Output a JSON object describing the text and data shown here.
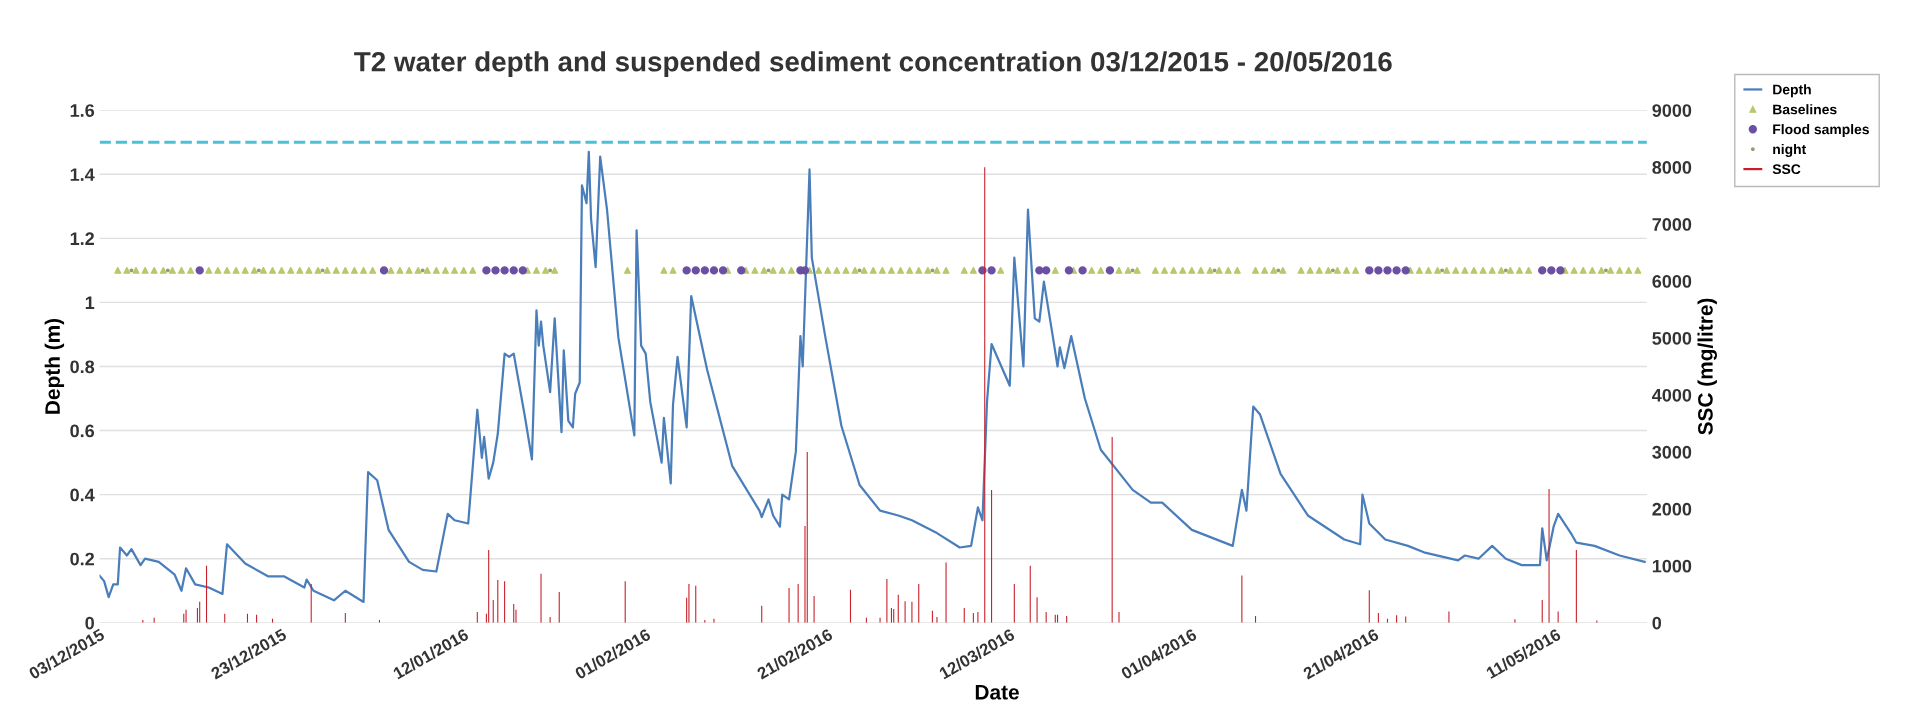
{
  "chart_data": {
    "type": "line",
    "title": "T2 water depth and suspended sediment concentration 03/12/2015 - 20/05/2016",
    "xlabel": "Date",
    "ylabel": "Depth (m)",
    "y2label": "SSC (mg/litre)",
    "xlim": [
      "2015-12-03",
      "2016-05-21"
    ],
    "xticks": [
      {
        "value": "2015-12-03",
        "label": "03/12/2015"
      },
      {
        "value": "2015-12-23",
        "label": "23/12/2015"
      },
      {
        "value": "2016-01-12",
        "label": "12/01/2016"
      },
      {
        "value": "2016-02-01",
        "label": "01/02/2016"
      },
      {
        "value": "2016-02-21",
        "label": "21/02/2016"
      },
      {
        "value": "2016-03-12",
        "label": "12/03/2016"
      },
      {
        "value": "2016-04-01",
        "label": "01/04/2016"
      },
      {
        "value": "2016-04-21",
        "label": "21/04/2016"
      },
      {
        "value": "2016-05-11",
        "label": "11/05/2016"
      }
    ],
    "ylim": [
      0,
      1.6
    ],
    "yticks": [
      0,
      0.2,
      0.4,
      0.6,
      0.8,
      1,
      1.2,
      1.4,
      1.6
    ],
    "y2lim": [
      0,
      9000
    ],
    "y2ticks": [
      0,
      1000,
      2000,
      3000,
      4000,
      5000,
      6000,
      7000,
      8000,
      9000
    ],
    "grid": "y",
    "legend": "top right",
    "ref_lines": [
      {
        "axis": "y",
        "value": 1.5,
        "label": null,
        "color": "#4bc0d9",
        "line_style": "dashed"
      }
    ],
    "series": [
      {
        "name": "Depth",
        "color": "#4a7ebb",
        "marker": "none",
        "line_style": "solid",
        "x": [
          "2015-12-03T00:00",
          "2015-12-03T12:00",
          "2015-12-04T00:00",
          "2015-12-04T12:00",
          "2015-12-05T00:00",
          "2015-12-05T06:00",
          "2015-12-06T00:00",
          "2015-12-06T12:00",
          "2015-12-07T12:00",
          "2015-12-08T00:00",
          "2015-12-09T12:00",
          "2015-12-11T06:00",
          "2015-12-12T00:00",
          "2015-12-12T12:00",
          "2015-12-13T12:00",
          "2015-12-15T00:00",
          "2015-12-16T12:00",
          "2015-12-17T00:00",
          "2015-12-19T00:00",
          "2015-12-21T12:00",
          "2015-12-23T06:00",
          "2015-12-25T12:00",
          "2015-12-25T18:00",
          "2015-12-26T12:00",
          "2015-12-28T18:00",
          "2015-12-30T00:00",
          "2016-01-01T00:00",
          "2016-01-01T12:00",
          "2016-01-02T12:00",
          "2016-01-03T18:00",
          "2016-01-06T00:00",
          "2016-01-07T12:00",
          "2016-01-09T00:00",
          "2016-01-10T06:00",
          "2016-01-11T00:00",
          "2016-01-12T12:00",
          "2016-01-13T12:00",
          "2016-01-14T00:00",
          "2016-01-14T06:00",
          "2016-01-14T18:00",
          "2016-01-15T06:00",
          "2016-01-15T18:00",
          "2016-01-16T12:00",
          "2016-01-17T00:00",
          "2016-01-17T12:00",
          "2016-01-18T18:00",
          "2016-01-19T12:00",
          "2016-01-20T00:00",
          "2016-01-20T06:00",
          "2016-01-20T12:00",
          "2016-01-20T18:00",
          "2016-01-21T12:00",
          "2016-01-22T00:00",
          "2016-01-22T18:00",
          "2016-01-23T00:00",
          "2016-01-23T12:00",
          "2016-01-24T00:00",
          "2016-01-24T06:00",
          "2016-01-24T18:00",
          "2016-01-25T00:00",
          "2016-01-25T12:00",
          "2016-01-25T18:00",
          "2016-01-26T00:00",
          "2016-01-26T12:00",
          "2016-01-27T00:00",
          "2016-01-27T18:00",
          "2016-01-29T00:00",
          "2016-01-30T18:00",
          "2016-01-31T00:00",
          "2016-01-31T12:00",
          "2016-02-01T00:00",
          "2016-02-01T12:00",
          "2016-02-02T18:00",
          "2016-02-03T00:00",
          "2016-02-03T18:00",
          "2016-02-04T00:00",
          "2016-02-04T12:00",
          "2016-02-05T12:00",
          "2016-02-06T00:00",
          "2016-02-07T18:00",
          "2016-02-10T12:00",
          "2016-02-13T12:00",
          "2016-02-13T18:00",
          "2016-02-14T12:00",
          "2016-02-15T00:00",
          "2016-02-15T18:00",
          "2016-02-16T00:00",
          "2016-02-16T18:00",
          "2016-02-17T12:00",
          "2016-02-18T00:00",
          "2016-02-18T06:00",
          "2016-02-19T00:00",
          "2016-02-19T06:00",
          "2016-02-20T18:00",
          "2016-02-22T12:00",
          "2016-02-24T12:00",
          "2016-02-26T18:00",
          "2016-02-28T18:00",
          "2016-03-01T06:00",
          "2016-03-04T00:00",
          "2016-03-06T12:00",
          "2016-03-07T18:00",
          "2016-03-08T12:00",
          "2016-03-09T00:00",
          "2016-03-09T12:00",
          "2016-03-10T00:00",
          "2016-03-12T00:00",
          "2016-03-12T12:00",
          "2016-03-13T12:00",
          "2016-03-14T00:00",
          "2016-03-14T18:00",
          "2016-03-15T06:00",
          "2016-03-15T18:00",
          "2016-03-16T18:00",
          "2016-03-17T06:00",
          "2016-03-17T12:00",
          "2016-03-18T00:00",
          "2016-03-18T18:00",
          "2016-03-20T06:00",
          "2016-03-22T00:00",
          "2016-03-25T12:00",
          "2016-03-27T12:00",
          "2016-03-28T18:00",
          "2016-04-01T00:00",
          "2016-04-05T12:00",
          "2016-04-06T12:00",
          "2016-04-07T00:00",
          "2016-04-07T18:00",
          "2016-04-08T12:00",
          "2016-04-10T18:00",
          "2016-04-13T18:00",
          "2016-04-17T18:00",
          "2016-04-19T12:00",
          "2016-04-19T18:00",
          "2016-04-20T12:00",
          "2016-04-22T06:00",
          "2016-04-24T18:00",
          "2016-04-26T12:00",
          "2016-04-30T06:00",
          "2016-05-01T00:00",
          "2016-05-02T12:00",
          "2016-05-04T00:00",
          "2016-05-05T12:00",
          "2016-05-07T06:00",
          "2016-05-09T06:00",
          "2016-05-09T12:00",
          "2016-05-10T00:00",
          "2016-05-10T18:00",
          "2016-05-11T06:00",
          "2016-05-12T18:00",
          "2016-05-13T06:00",
          "2016-05-15T06:00",
          "2016-05-18T00:00",
          "2016-05-20T18:00"
        ],
        "values": [
          0.147,
          0.13,
          0.08,
          0.12,
          0.12,
          0.235,
          0.21,
          0.23,
          0.18,
          0.2,
          0.19,
          0.15,
          0.1,
          0.17,
          0.12,
          0.11,
          0.09,
          0.245,
          0.185,
          0.145,
          0.145,
          0.11,
          0.135,
          0.1,
          0.07,
          0.1,
          0.065,
          0.47,
          0.445,
          0.29,
          0.19,
          0.165,
          0.16,
          0.34,
          0.32,
          0.31,
          0.665,
          0.515,
          0.58,
          0.45,
          0.5,
          0.59,
          0.84,
          0.83,
          0.84,
          0.64,
          0.51,
          0.975,
          0.865,
          0.94,
          0.865,
          0.72,
          0.95,
          0.595,
          0.85,
          0.63,
          0.61,
          0.715,
          0.75,
          1.365,
          1.31,
          1.47,
          1.26,
          1.11,
          1.455,
          1.29,
          0.89,
          0.585,
          1.225,
          0.865,
          0.84,
          0.69,
          0.5,
          0.64,
          0.435,
          0.68,
          0.83,
          0.61,
          1.02,
          0.79,
          0.49,
          0.35,
          0.33,
          0.385,
          0.335,
          0.3,
          0.4,
          0.385,
          0.535,
          0.895,
          0.8,
          1.415,
          1.14,
          0.89,
          0.615,
          0.43,
          0.35,
          0.335,
          0.32,
          0.28,
          0.235,
          0.24,
          0.36,
          0.32,
          0.69,
          0.87,
          0.74,
          1.14,
          0.8,
          1.29,
          0.95,
          0.94,
          1.065,
          0.89,
          0.8,
          0.86,
          0.795,
          0.895,
          0.7,
          0.54,
          0.415,
          0.375,
          0.375,
          0.29,
          0.24,
          0.415,
          0.35,
          0.675,
          0.65,
          0.465,
          0.335,
          0.26,
          0.245,
          0.4,
          0.31,
          0.26,
          0.24,
          0.22,
          0.195,
          0.21,
          0.2,
          0.24,
          0.2,
          0.18,
          0.18,
          0.295,
          0.195,
          0.3,
          0.34,
          0.275,
          0.25,
          0.24,
          0.21,
          0.19
        ]
      },
      {
        "name": "Baselines",
        "type": "scatter",
        "color": "#b8c86a",
        "marker": "triangle",
        "x": [
          "2015-12-05",
          "2015-12-06",
          "2015-12-07",
          "2015-12-08",
          "2015-12-09",
          "2015-12-10",
          "2015-12-11",
          "2015-12-12",
          "2015-12-13",
          "2015-12-15",
          "2015-12-16",
          "2015-12-17",
          "2015-12-18",
          "2015-12-19",
          "2015-12-20",
          "2015-12-21",
          "2015-12-22",
          "2015-12-23",
          "2015-12-24",
          "2015-12-25",
          "2015-12-26",
          "2015-12-27",
          "2015-12-28",
          "2015-12-29",
          "2015-12-30",
          "2015-12-31",
          "2016-01-01",
          "2016-01-02",
          "2016-01-04",
          "2016-01-05",
          "2016-01-06",
          "2016-01-07",
          "2016-01-08",
          "2016-01-09",
          "2016-01-10",
          "2016-01-11",
          "2016-01-12",
          "2016-01-13",
          "2016-01-19",
          "2016-01-20",
          "2016-01-21",
          "2016-01-22",
          "2016-01-30",
          "2016-02-03",
          "2016-02-04",
          "2016-02-10",
          "2016-02-12",
          "2016-02-13",
          "2016-02-14",
          "2016-02-15",
          "2016-02-16",
          "2016-02-17",
          "2016-02-19",
          "2016-02-20",
          "2016-02-21",
          "2016-02-22",
          "2016-02-23",
          "2016-02-24",
          "2016-02-25",
          "2016-02-26",
          "2016-02-27",
          "2016-02-28",
          "2016-02-29",
          "2016-03-01",
          "2016-03-02",
          "2016-03-03",
          "2016-03-04",
          "2016-03-05",
          "2016-03-07",
          "2016-03-08",
          "2016-03-11",
          "2016-03-17",
          "2016-03-19",
          "2016-03-21",
          "2016-03-22",
          "2016-03-24",
          "2016-03-25",
          "2016-03-26",
          "2016-03-28",
          "2016-03-29",
          "2016-03-30",
          "2016-03-31",
          "2016-04-01",
          "2016-04-02",
          "2016-04-03",
          "2016-04-04",
          "2016-04-05",
          "2016-04-06",
          "2016-04-08",
          "2016-04-09",
          "2016-04-10",
          "2016-04-11",
          "2016-04-13",
          "2016-04-14",
          "2016-04-15",
          "2016-04-16",
          "2016-04-17",
          "2016-04-18",
          "2016-04-19",
          "2016-04-25",
          "2016-04-26",
          "2016-04-27",
          "2016-04-28",
          "2016-04-29",
          "2016-04-30",
          "2016-05-01",
          "2016-05-02",
          "2016-05-03",
          "2016-05-04",
          "2016-05-05",
          "2016-05-06",
          "2016-05-07",
          "2016-05-08",
          "2016-05-12",
          "2016-05-13",
          "2016-05-14",
          "2016-05-15",
          "2016-05-16",
          "2016-05-17",
          "2016-05-18",
          "2016-05-19",
          "2016-05-20"
        ],
        "values": [
          1.1,
          1.1,
          1.1,
          1.1,
          1.1,
          1.1,
          1.1,
          1.1,
          1.1,
          1.1,
          1.1,
          1.1,
          1.1,
          1.1,
          1.1,
          1.1,
          1.1,
          1.1,
          1.1,
          1.1,
          1.1,
          1.1,
          1.1,
          1.1,
          1.1,
          1.1,
          1.1,
          1.1,
          1.1,
          1.1,
          1.1,
          1.1,
          1.1,
          1.1,
          1.1,
          1.1,
          1.1,
          1.1,
          1.1,
          1.1,
          1.1,
          1.1,
          1.1,
          1.1,
          1.1,
          1.1,
          1.1,
          1.1,
          1.1,
          1.1,
          1.1,
          1.1,
          1.1,
          1.1,
          1.1,
          1.1,
          1.1,
          1.1,
          1.1,
          1.1,
          1.1,
          1.1,
          1.1,
          1.1,
          1.1,
          1.1,
          1.1,
          1.1,
          1.1,
          1.1,
          1.1,
          1.1,
          1.1,
          1.1,
          1.1,
          1.1,
          1.1,
          1.1,
          1.1,
          1.1,
          1.1,
          1.1,
          1.1,
          1.1,
          1.1,
          1.1,
          1.1,
          1.1,
          1.1,
          1.1,
          1.1,
          1.1,
          1.1,
          1.1,
          1.1,
          1.1,
          1.1,
          1.1,
          1.1,
          1.1,
          1.1,
          1.1,
          1.1,
          1.1,
          1.1,
          1.1,
          1.1,
          1.1,
          1.1,
          1.1,
          1.1,
          1.1,
          1.1,
          1.1,
          1.1,
          1.1,
          1.1,
          1.1,
          1.1,
          1.1,
          1.1,
          1.1
        ]
      },
      {
        "name": "Flood samples",
        "type": "scatter",
        "color": "#6a4fa3",
        "marker": "circle",
        "x": [
          "2015-12-14T00:00",
          "2016-01-03T06:00",
          "2016-01-14T12:00",
          "2016-01-15T12:00",
          "2016-01-16T12:00",
          "2016-01-17T12:00",
          "2016-01-18T12:00",
          "2016-02-05T12:00",
          "2016-02-06T12:00",
          "2016-02-07T12:00",
          "2016-02-08T12:00",
          "2016-02-09T12:00",
          "2016-02-11T12:00",
          "2016-02-18T00:00",
          "2016-02-18T12:00",
          "2016-03-09T00:00",
          "2016-03-10T00:00",
          "2016-03-15T06:00",
          "2016-03-16T00:00",
          "2016-03-18T12:00",
          "2016-03-20T00:00",
          "2016-03-23T00:00",
          "2016-04-20T12:00",
          "2016-04-21T12:00",
          "2016-04-22T12:00",
          "2016-04-23T12:00",
          "2016-04-24T12:00",
          "2016-05-09T12:00",
          "2016-05-10T12:00",
          "2016-05-11T12:00"
        ],
        "values": [
          1.1,
          1.1,
          1.1,
          1.1,
          1.1,
          1.1,
          1.1,
          1.1,
          1.1,
          1.1,
          1.1,
          1.1,
          1.1,
          1.1,
          1.1,
          1.1,
          1.1,
          1.1,
          1.1,
          1.1,
          1.1,
          1.1,
          1.1,
          1.1,
          1.1,
          1.1,
          1.1,
          1.1,
          1.1,
          1.1
        ]
      },
      {
        "name": "night",
        "type": "scatter",
        "color": "#9a9a70",
        "marker": "circle",
        "x": [
          "2015-12-06T12:00",
          "2015-12-10T12:00",
          "2015-12-20T12:00",
          "2015-12-27T12:00",
          "2016-01-07T12:00",
          "2016-01-21T12:00",
          "2016-02-14T12:00",
          "2016-02-24T12:00",
          "2016-03-03T12:00",
          "2016-03-25T12:00",
          "2016-04-03T12:00",
          "2016-04-10T12:00",
          "2016-04-16T12:00",
          "2016-04-28T12:00",
          "2016-05-05T12:00",
          "2016-05-16T12:00"
        ],
        "values": [
          1.1,
          1.1,
          1.1,
          1.1,
          1.1,
          1.1,
          1.1,
          1.1,
          1.1,
          1.1,
          1.1,
          1.1,
          1.1,
          1.1,
          1.1,
          1.1
        ]
      },
      {
        "name": "SSC",
        "type": "bar",
        "axis": "y2",
        "color": "#c8202a",
        "x": [
          "2015-12-07T18:00",
          "2015-12-09T00:00",
          "2015-12-12T06:00",
          "2015-12-12T12:00",
          "2015-12-13T18:00",
          "2015-12-14T00:00",
          "2015-12-14T18:00",
          "2015-12-16T18:00",
          "2015-12-19T06:00",
          "2015-12-20T06:00",
          "2015-12-22T00:00",
          "2015-12-26T06:00",
          "2015-12-30T00:00",
          "2016-01-02T18:00",
          "2016-01-13T12:00",
          "2016-01-14T12:00",
          "2016-01-14T18:00",
          "2016-01-15T06:00",
          "2016-01-15T18:00",
          "2016-01-16T12:00",
          "2016-01-17T12:00",
          "2016-01-17T18:00",
          "2016-01-20T12:00",
          "2016-01-21T12:00",
          "2016-01-22T12:00",
          "2016-01-29T18:00",
          "2016-02-05T12:00",
          "2016-02-05T18:00",
          "2016-02-06T12:00",
          "2016-02-07T12:00",
          "2016-02-08T12:00",
          "2016-02-13T18:00",
          "2016-02-16T18:00",
          "2016-02-17T18:00",
          "2016-02-18T12:00",
          "2016-02-18T18:00",
          "2016-02-19T12:00",
          "2016-02-23T12:00",
          "2016-02-25T06:00",
          "2016-02-26T18:00",
          "2016-02-27T12:00",
          "2016-02-28T00:00",
          "2016-02-28T06:00",
          "2016-02-28T18:00",
          "2016-02-29T12:00",
          "2016-03-01T06:00",
          "2016-03-02T00:00",
          "2016-03-03T12:00",
          "2016-03-04T00:00",
          "2016-03-05T00:00",
          "2016-03-07T00:00",
          "2016-03-08T00:00",
          "2016-03-08T12:00",
          "2016-03-09T06:00",
          "2016-03-10T00:00",
          "2016-03-12T12:00",
          "2016-03-14T06:00",
          "2016-03-15T00:00",
          "2016-03-16T00:00",
          "2016-03-17T00:00",
          "2016-03-17T06:00",
          "2016-03-18T06:00",
          "2016-03-23T06:00",
          "2016-03-24T00:00",
          "2016-04-06T12:00",
          "2016-04-08T00:00",
          "2016-04-20T12:00",
          "2016-04-21T12:00",
          "2016-04-22T12:00",
          "2016-04-23T12:00",
          "2016-04-24T12:00",
          "2016-04-29T06:00",
          "2016-05-06T12:00",
          "2016-05-09T12:00",
          "2016-05-10T06:00",
          "2016-05-11T06:00",
          "2016-05-13T06:00",
          "2016-05-15T12:00"
        ],
        "values": [
          50,
          90,
          160,
          230,
          260,
          370,
          1000,
          160,
          160,
          140,
          70,
          680,
          170,
          50,
          190,
          160,
          1280,
          400,
          750,
          730,
          330,
          230,
          860,
          100,
          540,
          730,
          440,
          680,
          650,
          50,
          70,
          300,
          610,
          680,
          1700,
          3000,
          470,
          580,
          90,
          90,
          770,
          260,
          240,
          490,
          380,
          370,
          680,
          210,
          100,
          1060,
          260,
          170,
          190,
          8000,
          2330,
          680,
          1000,
          450,
          190,
          140,
          140,
          120,
          3260,
          190,
          830,
          120,
          570,
          170,
          70,
          130,
          110,
          200,
          60,
          400,
          2350,
          200,
          1280,
          40
        ]
      }
    ]
  }
}
